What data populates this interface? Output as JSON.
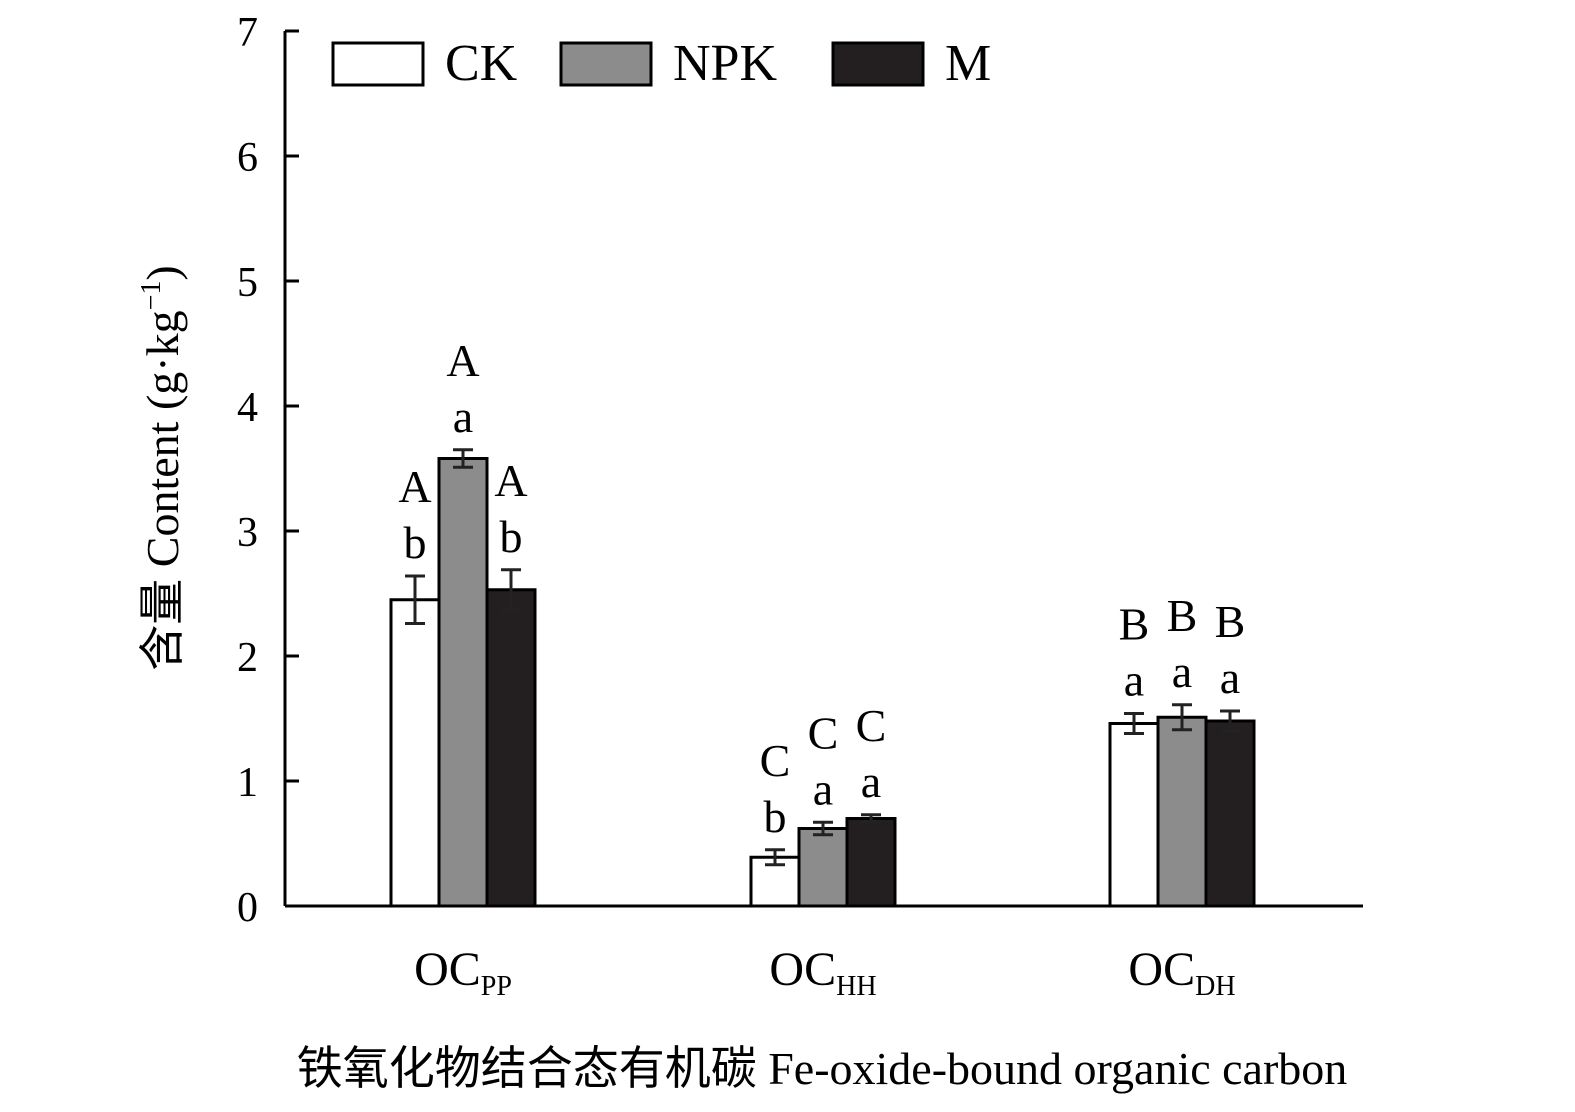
{
  "chart_data": {
    "type": "bar",
    "ylabel": "含量 Content (g·kg⁻¹)",
    "ylabel_parts": {
      "main": "含量 Content (g·kg",
      "sup": "−1",
      "close": ")"
    },
    "xlabel": "铁氧化物结合态有机碳 Fe-oxide-bound organic carbon",
    "ylim": [
      0,
      7
    ],
    "yticks": [
      0,
      1,
      2,
      3,
      4,
      5,
      6,
      7
    ],
    "legend_position": "top-left",
    "grid": false,
    "categories": [
      {
        "main": "OC",
        "sub": "PP"
      },
      {
        "main": "OC",
        "sub": "HH"
      },
      {
        "main": "OC",
        "sub": "DH"
      }
    ],
    "series": [
      {
        "name": "CK",
        "color": "#ffffff",
        "values": [
          2.45,
          0.39,
          1.46
        ],
        "errors": [
          0.19,
          0.06,
          0.08
        ],
        "letters_upper": [
          "A",
          "C",
          "B"
        ],
        "letters_lower": [
          "b",
          "b",
          "a"
        ]
      },
      {
        "name": "NPK",
        "color": "#8c8c8c",
        "values": [
          3.58,
          0.62,
          1.51
        ],
        "errors": [
          0.07,
          0.05,
          0.1
        ],
        "letters_upper": [
          "A",
          "C",
          "B"
        ],
        "letters_lower": [
          "a",
          "a",
          "a"
        ]
      },
      {
        "name": "M",
        "color": "#231f20",
        "values": [
          2.53,
          0.7,
          1.48
        ],
        "errors": [
          0.16,
          0.03,
          0.08
        ],
        "letters_upper": [
          "A",
          "C",
          "B"
        ],
        "letters_lower": [
          "b",
          "a",
          "a"
        ]
      }
    ]
  }
}
